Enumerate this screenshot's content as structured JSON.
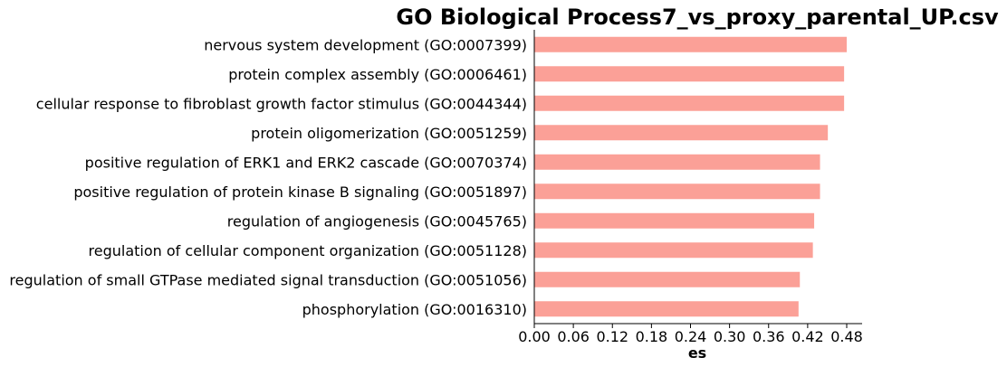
{
  "chart_data": {
    "type": "bar",
    "orientation": "horizontal",
    "title": "GO Biological Process7_vs_proxy_parental_UP.csv",
    "xlabel": "es",
    "ylabel": "",
    "xlim": [
      0,
      0.5
    ],
    "xticks": [
      0.0,
      0.06,
      0.12,
      0.18,
      0.24,
      0.3,
      0.36,
      0.42,
      0.48
    ],
    "xtick_labels": [
      "0.00",
      "0.06",
      "0.12",
      "0.18",
      "0.24",
      "0.30",
      "0.36",
      "0.42",
      "0.48"
    ],
    "grid": false,
    "bar_color": "#fba097",
    "categories": [
      "nervous system development (GO:0007399)",
      "protein complex assembly (GO:0006461)",
      "cellular response to fibroblast growth factor stimulus (GO:0044344)",
      "protein oligomerization (GO:0051259)",
      "positive regulation of ERK1 and ERK2 cascade (GO:0070374)",
      "positive regulation of protein kinase B signaling (GO:0051897)",
      "regulation of angiogenesis (GO:0045765)",
      "regulation of cellular component organization (GO:0051128)",
      "regulation of small GTPase mediated signal transduction (GO:0051056)",
      "phosphorylation (GO:0016310)"
    ],
    "values": [
      0.48,
      0.476,
      0.476,
      0.451,
      0.439,
      0.439,
      0.43,
      0.428,
      0.408,
      0.406
    ]
  }
}
